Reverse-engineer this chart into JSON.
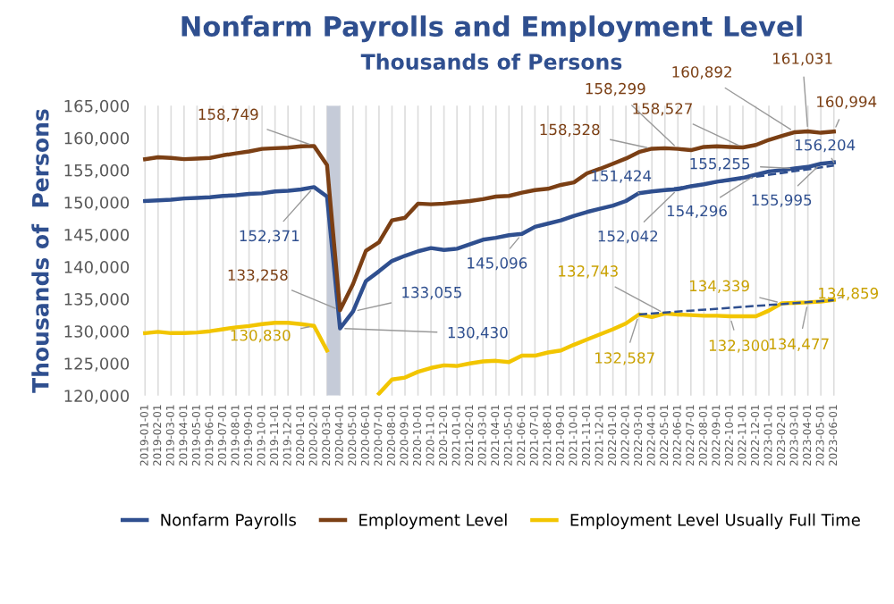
{
  "chart_data": {
    "type": "line",
    "title": "Nonfarm Payrolls and Employment Level",
    "subtitle": "Thousands of Persons",
    "ylabel": "Thousands of  Persons",
    "categories": [
      "2019-01-01",
      "2019-02-01",
      "2019-03-01",
      "2019-04-01",
      "2019-05-01",
      "2019-06-01",
      "2019-07-01",
      "2019-08-01",
      "2019-09-01",
      "2019-10-01",
      "2019-11-01",
      "2019-12-01",
      "2020-01-01",
      "2020-02-01",
      "2020-03-01",
      "2020-04-01",
      "2020-05-01",
      "2020-06-01",
      "2020-07-01",
      "2020-08-01",
      "2020-09-01",
      "2020-10-01",
      "2020-11-01",
      "2020-12-01",
      "2021-01-01",
      "2021-02-01",
      "2021-03-01",
      "2021-04-01",
      "2021-05-01",
      "2021-06-01",
      "2021-07-01",
      "2021-08-01",
      "2021-09-01",
      "2021-10-01",
      "2021-11-01",
      "2021-12-01",
      "2022-01-01",
      "2022-02-01",
      "2022-03-01",
      "2022-04-01",
      "2022-05-01",
      "2022-06-01",
      "2022-07-01",
      "2022-08-01",
      "2022-09-01",
      "2022-10-01",
      "2022-11-01",
      "2022-12-01",
      "2023-01-01",
      "2023-02-01",
      "2023-03-01",
      "2023-04-01",
      "2023-05-01",
      "2023-06-01"
    ],
    "series": [
      {
        "name": "Nonfarm Payrolls",
        "color": "#2f4f8f",
        "values": [
          150200,
          150300,
          150400,
          150600,
          150700,
          150800,
          151000,
          151100,
          151300,
          151400,
          151700,
          151800,
          152000,
          152371,
          150900,
          130430,
          133055,
          137800,
          139300,
          140900,
          141700,
          142400,
          142900,
          142600,
          142800,
          143500,
          144200,
          144500,
          144900,
          145096,
          146200,
          146700,
          147200,
          147900,
          148500,
          149000,
          149500,
          150200,
          151424,
          151700,
          151900,
          152042,
          152500,
          152800,
          153200,
          153500,
          153800,
          154296,
          154800,
          155000,
          155255,
          155500,
          155995,
          156204
        ],
        "value_labels": [
          null,
          null,
          null,
          null,
          null,
          null,
          null,
          null,
          null,
          null,
          null,
          null,
          null,
          "152,371",
          null,
          "130,430",
          "133,055",
          null,
          null,
          null,
          null,
          null,
          null,
          null,
          null,
          null,
          null,
          null,
          null,
          "145,096",
          null,
          null,
          null,
          null,
          null,
          null,
          null,
          null,
          "151,424",
          null,
          null,
          "152,042",
          null,
          null,
          null,
          null,
          null,
          "154,296",
          null,
          null,
          "155,255",
          null,
          "155,995",
          "156,204"
        ]
      },
      {
        "name": "Employment Level",
        "color": "#7b3f14",
        "values": [
          156700,
          157000,
          156900,
          156700,
          156800,
          156900,
          157300,
          157600,
          157900,
          158300,
          158400,
          158500,
          158700,
          158749,
          155800,
          133258,
          137300,
          142500,
          143800,
          147200,
          147600,
          149800,
          149700,
          149800,
          150000,
          150200,
          150500,
          150900,
          151000,
          151500,
          151900,
          152100,
          152700,
          153100,
          154500,
          155200,
          156000,
          156800,
          157800,
          158328,
          158400,
          158299,
          158100,
          158600,
          158700,
          158600,
          158527,
          158900,
          159700,
          160300,
          160892,
          161031,
          160800,
          160994
        ],
        "value_labels": [
          null,
          null,
          null,
          null,
          null,
          null,
          null,
          null,
          null,
          null,
          null,
          null,
          null,
          "158,749",
          null,
          "133,258",
          null,
          null,
          null,
          null,
          null,
          null,
          null,
          null,
          null,
          null,
          null,
          null,
          null,
          null,
          null,
          null,
          null,
          null,
          null,
          null,
          null,
          null,
          null,
          "158,328",
          null,
          "158,299",
          null,
          null,
          null,
          null,
          "158,527",
          null,
          null,
          null,
          "160,892",
          "161,031",
          null,
          "160,994"
        ]
      },
      {
        "name": "Employment Level Usually Full Time",
        "color": "#f2c500",
        "values": [
          129700,
          129900,
          129700,
          129700,
          129800,
          130000,
          130300,
          130600,
          130800,
          131100,
          131300,
          131300,
          131100,
          130830,
          127000,
          null,
          null,
          null,
          120300,
          122500,
          122800,
          123700,
          124300,
          124700,
          124600,
          125000,
          125300,
          125400,
          125200,
          126200,
          126200,
          126700,
          127000,
          127900,
          128700,
          129500,
          130300,
          131200,
          132587,
          132200,
          132743,
          132600,
          132500,
          132400,
          132400,
          132300,
          132300,
          132300,
          133200,
          134339,
          134400,
          134477,
          134600,
          134859
        ],
        "value_labels": [
          null,
          null,
          null,
          null,
          null,
          null,
          null,
          null,
          null,
          null,
          null,
          null,
          null,
          "130,830",
          null,
          null,
          null,
          null,
          null,
          null,
          null,
          null,
          null,
          null,
          null,
          null,
          null,
          null,
          null,
          null,
          null,
          null,
          null,
          null,
          null,
          null,
          null,
          null,
          "132,587",
          null,
          "132,743",
          null,
          null,
          null,
          null,
          "132,300",
          null,
          null,
          null,
          "134,339",
          null,
          "134,477",
          null,
          "134,859"
        ]
      },
      {
        "color": "#2f4f8f",
        "line_style": "dashed",
        "values": [
          null,
          null,
          null,
          null,
          null,
          null,
          null,
          null,
          null,
          null,
          null,
          null,
          null,
          null,
          null,
          null,
          null,
          null,
          null,
          null,
          null,
          null,
          null,
          null,
          null,
          null,
          null,
          null,
          null,
          null,
          null,
          null,
          null,
          null,
          null,
          null,
          null,
          null,
          151400,
          null,
          null,
          null,
          null,
          null,
          null,
          null,
          null,
          null,
          null,
          null,
          null,
          null,
          null,
          155700
        ]
      },
      {
        "color": "#2f4f8f",
        "line_style": "dashed",
        "values": [
          null,
          null,
          null,
          null,
          null,
          null,
          null,
          null,
          null,
          null,
          null,
          null,
          null,
          null,
          null,
          null,
          null,
          null,
          null,
          null,
          null,
          null,
          null,
          null,
          null,
          null,
          null,
          null,
          null,
          null,
          null,
          null,
          null,
          null,
          null,
          null,
          null,
          null,
          132600,
          null,
          null,
          null,
          null,
          null,
          null,
          null,
          null,
          null,
          null,
          null,
          null,
          null,
          null,
          134800
        ]
      }
    ],
    "ylim": [
      120000,
      165000
    ],
    "yticks": [
      {
        "value": 120000,
        "label": "120,000"
      },
      {
        "value": 125000,
        "label": "125,000"
      },
      {
        "value": 130000,
        "label": "130,000"
      },
      {
        "value": 135000,
        "label": "135,000"
      },
      {
        "value": 140000,
        "label": "140,000"
      },
      {
        "value": 145000,
        "label": "145,000"
      },
      {
        "value": 150000,
        "label": "150,000"
      },
      {
        "value": 155000,
        "label": "155,000"
      },
      {
        "value": 160000,
        "label": "160,000"
      },
      {
        "value": 165000,
        "label": "165,000"
      }
    ],
    "bands": [
      {
        "axis": "x",
        "from": "2020-03-01",
        "to": "2020-04-01",
        "color": "#c5cbd8"
      }
    ],
    "grid": "x",
    "legend": "bottom",
    "line_style": "solid",
    "marker": "none"
  }
}
